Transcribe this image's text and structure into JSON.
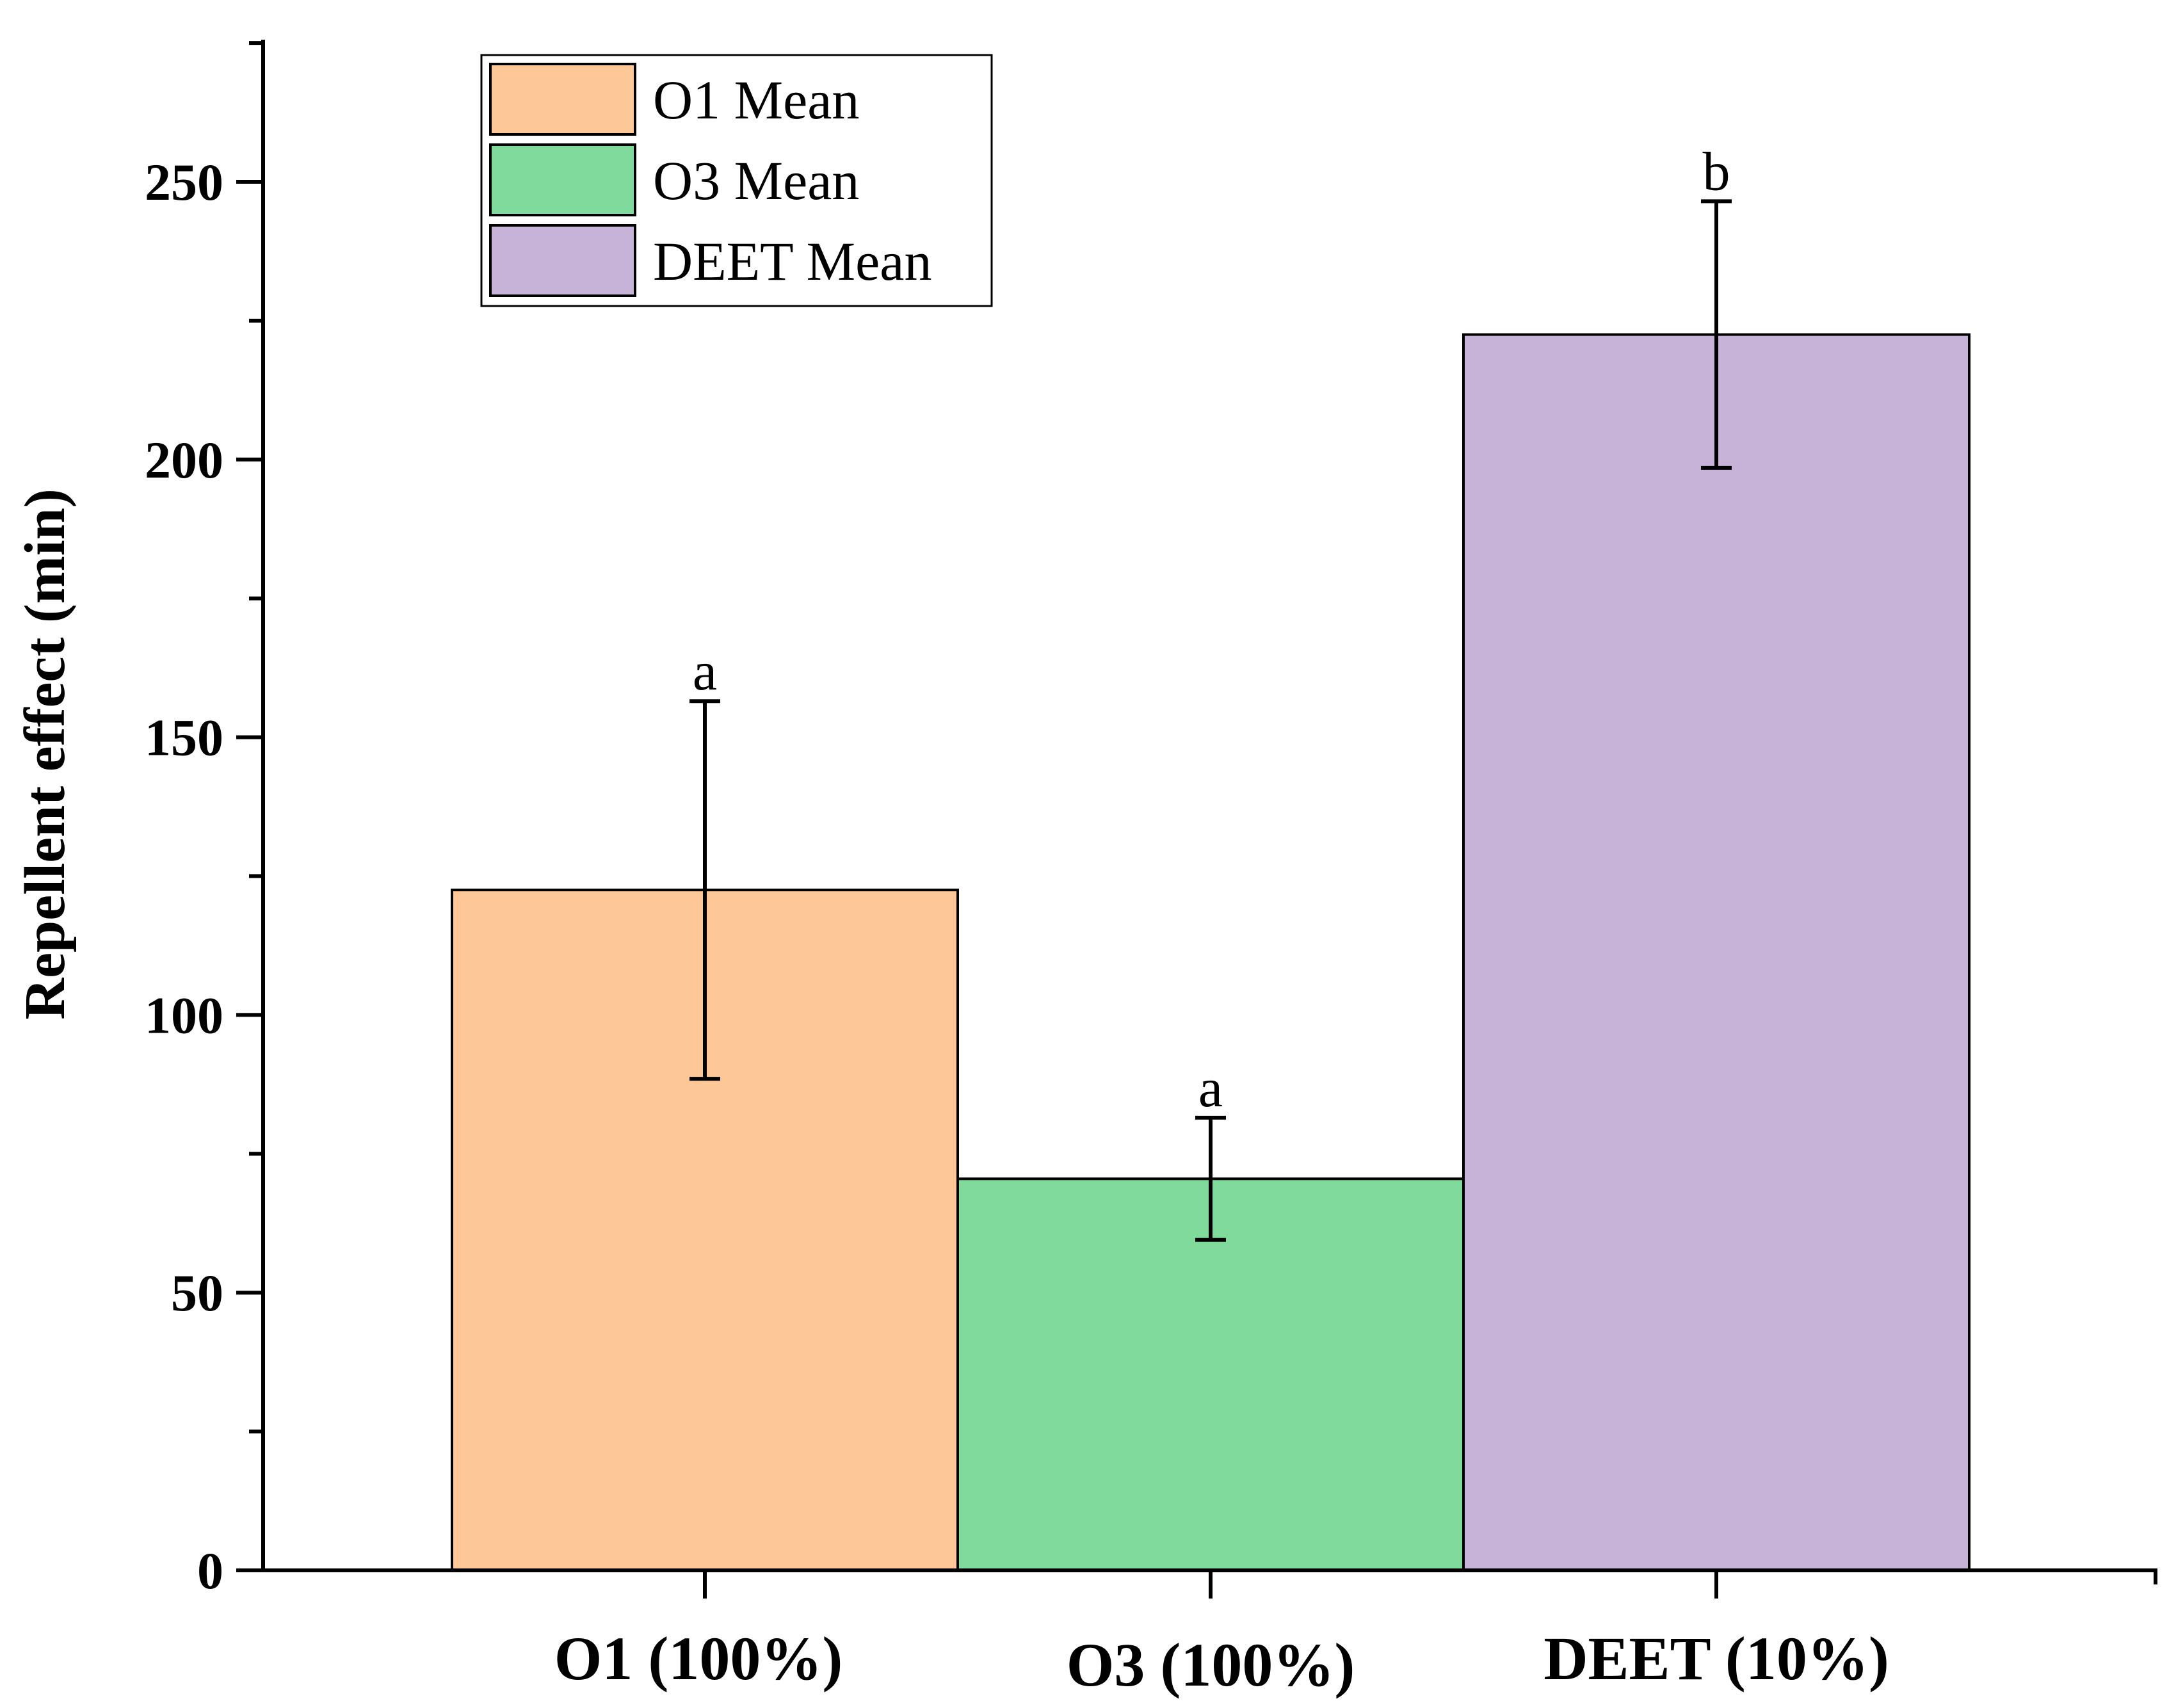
{
  "chart_data": {
    "type": "bar",
    "title": "",
    "xlabel": "",
    "ylabel": "Repellent effect (min)",
    "categories": [
      "O1 (100%)",
      "O3 (100%)",
      "DEET (10%)"
    ],
    "series": [
      {
        "name": "O1 Mean",
        "color": "#FDC797",
        "values": [
          122.5,
          null,
          null
        ],
        "errors": [
          34,
          null,
          null
        ],
        "letters": [
          "a",
          null,
          null
        ]
      },
      {
        "name": "O3 Mean",
        "color": "#80DA9B",
        "values": [
          null,
          70.5,
          null
        ],
        "errors": [
          null,
          11,
          null
        ],
        "letters": [
          null,
          "a",
          null
        ]
      },
      {
        "name": "DEET Mean",
        "color": "#C8B3D8",
        "values": [
          null,
          null,
          222.5
        ],
        "errors": [
          null,
          null,
          24
        ],
        "letters": [
          null,
          null,
          "b"
        ]
      }
    ],
    "ylim": [
      0,
      275
    ],
    "yticks": [
      0,
      50,
      100,
      150,
      200,
      250
    ],
    "minor_tick_step": 25,
    "grid": false,
    "legend_position": "top-left"
  }
}
